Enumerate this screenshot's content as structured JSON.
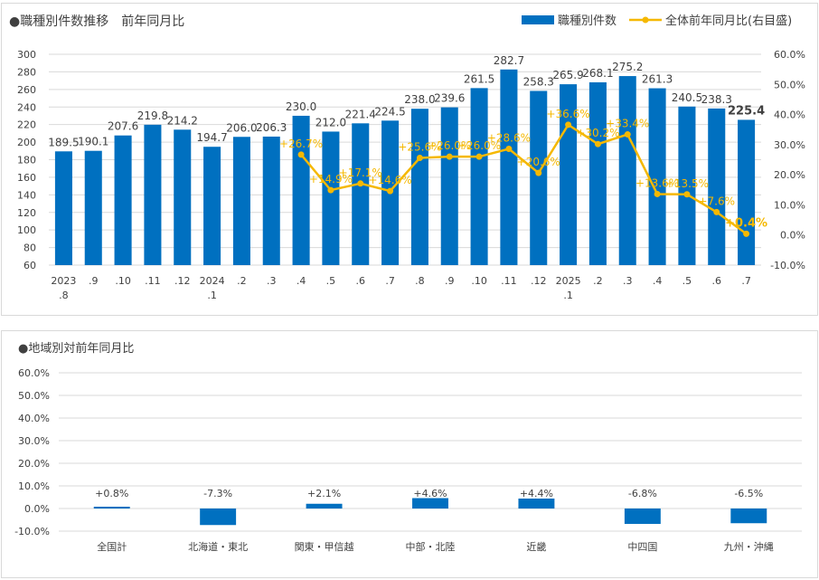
{
  "chart_data": [
    {
      "type": "bar+line",
      "title": "●職種別件数推移　前年同月比",
      "categories": [
        [
          "2023",
          ".8"
        ],
        [
          ".9"
        ],
        [
          ".10"
        ],
        [
          ".11"
        ],
        [
          ".12"
        ],
        [
          "2024",
          ".1"
        ],
        [
          ".2"
        ],
        [
          ".3"
        ],
        [
          ".4"
        ],
        [
          ".5"
        ],
        [
          ".6"
        ],
        [
          ".7"
        ],
        [
          ".8"
        ],
        [
          ".9"
        ],
        [
          ".10"
        ],
        [
          ".11"
        ],
        [
          ".12"
        ],
        [
          "2025",
          ".1"
        ],
        [
          ".2"
        ],
        [
          ".3"
        ],
        [
          ".4"
        ],
        [
          ".5"
        ],
        [
          ".6"
        ],
        [
          ".7"
        ]
      ],
      "series": [
        {
          "name": "職種別件数",
          "kind": "bar",
          "color": "#0070c0",
          "values": [
            189.5,
            190.1,
            207.6,
            219.8,
            214.2,
            194.7,
            206.0,
            206.3,
            230.0,
            212.0,
            221.4,
            224.5,
            238.0,
            239.6,
            261.5,
            282.7,
            258.3,
            265.9,
            268.1,
            275.2,
            261.3,
            240.5,
            238.3,
            225.4
          ],
          "labels": [
            "189.5",
            "190.1",
            "207.6",
            "219.8",
            "214.2",
            "194.7",
            "206.0",
            "206.3",
            "230.0",
            "212.0",
            "221.4",
            "224.5",
            "238.0",
            "239.6",
            "261.5",
            "282.7",
            "258.3",
            "265.9",
            "268.1",
            "275.2",
            "261.3",
            "240.5",
            "238.3",
            "225.4"
          ]
        },
        {
          "name": "全体前年同月比(右目盛)",
          "kind": "line",
          "color": "#f5b800",
          "axis": "right",
          "values": [
            null,
            null,
            null,
            null,
            null,
            null,
            null,
            null,
            26.7,
            14.9,
            17.1,
            14.6,
            25.6,
            26.0,
            26.0,
            28.6,
            20.6,
            36.6,
            30.2,
            33.4,
            13.6,
            13.5,
            7.6,
            0.4
          ],
          "labels": [
            "",
            "",
            "",
            "",
            "",
            "",
            "",
            "",
            "+26.7%",
            "+14.9%",
            "+17.1%",
            "+14.6%",
            "+25.6%",
            "+26.0%",
            "+26.0%",
            "+28.6%",
            "+20.6%",
            "+36.6%",
            "+30.2%",
            "+33.4%",
            "+13.6%",
            "+13.5%",
            "+7.6%",
            "+0.4%"
          ]
        }
      ],
      "ylim": [
        60,
        300
      ],
      "yticks": [
        "300",
        "280",
        "260",
        "240",
        "220",
        "200",
        "180",
        "160",
        "140",
        "120",
        "100",
        "80",
        "60"
      ],
      "y2lim": [
        -10,
        60
      ],
      "y2ticks": [
        "60.0%",
        "50.0%",
        "40.0%",
        "30.0%",
        "20.0%",
        "10.0%",
        "0.0%",
        "-10.0%"
      ],
      "grid": true,
      "legend": "top-right"
    },
    {
      "type": "bar",
      "title": "●地域別対前年同月比",
      "categories": [
        "全国計",
        "北海道・東北",
        "関東・甲信越",
        "中部・北陸",
        "近畿",
        "中四国",
        "九州・沖縄"
      ],
      "values": [
        0.8,
        -7.3,
        2.1,
        4.6,
        4.4,
        -6.8,
        -6.5
      ],
      "labels": [
        "+0.8%",
        "-7.3%",
        "+2.1%",
        "+4.6%",
        "+4.4%",
        "-6.8%",
        "-6.5%"
      ],
      "color": "#0070c0",
      "ylim": [
        -10,
        60
      ],
      "yticks": [
        "60.0%",
        "50.0%",
        "40.0%",
        "30.0%",
        "20.0%",
        "10.0%",
        "0.0%",
        "-10.0%"
      ],
      "grid": true
    }
  ]
}
